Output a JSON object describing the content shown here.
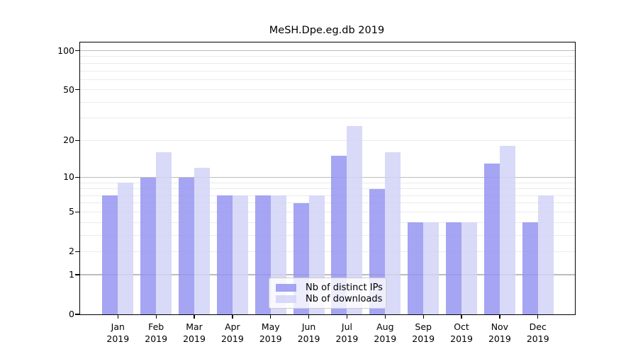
{
  "title": "MeSH.Dpe.eg.db 2019",
  "chart_data": {
    "type": "bar",
    "title": "MeSH.Dpe.eg.db 2019",
    "categories": [
      "Jan",
      "Feb",
      "Mar",
      "Apr",
      "May",
      "Jun",
      "Jul",
      "Aug",
      "Sep",
      "Oct",
      "Nov",
      "Dec"
    ],
    "year_label": "2019",
    "series": [
      {
        "name": "Nb of distinct IPs",
        "color": "#a5a5f3",
        "values": [
          7,
          10,
          10,
          7,
          7,
          6,
          15,
          8,
          4,
          4,
          13,
          4
        ]
      },
      {
        "name": "Nb of downloads",
        "color": "#d9d9f8",
        "values": [
          9,
          16,
          12,
          7,
          7,
          7,
          26,
          16,
          4,
          4,
          18,
          7
        ]
      }
    ],
    "xlabel": "",
    "ylabel": "",
    "yscale": "log1p",
    "ylim": [
      0,
      115
    ],
    "yticks": [
      0,
      1,
      2,
      5,
      10,
      20,
      50,
      100
    ],
    "major_gridlines": [
      1,
      10,
      100
    ],
    "minor_gridlines": [
      2,
      3,
      4,
      5,
      6,
      7,
      8,
      9,
      20,
      30,
      40,
      50,
      60,
      70,
      80,
      90
    ],
    "grid": true,
    "legend_position": "inside-bottom-center"
  },
  "colors": {
    "background": "#ffffff",
    "axis": "#000000",
    "major_grid": "#bcbcbc",
    "minor_grid": "#ebebeb",
    "bar_distinct_ips": "#a5a5f3",
    "bar_downloads": "#d9d9f8"
  }
}
